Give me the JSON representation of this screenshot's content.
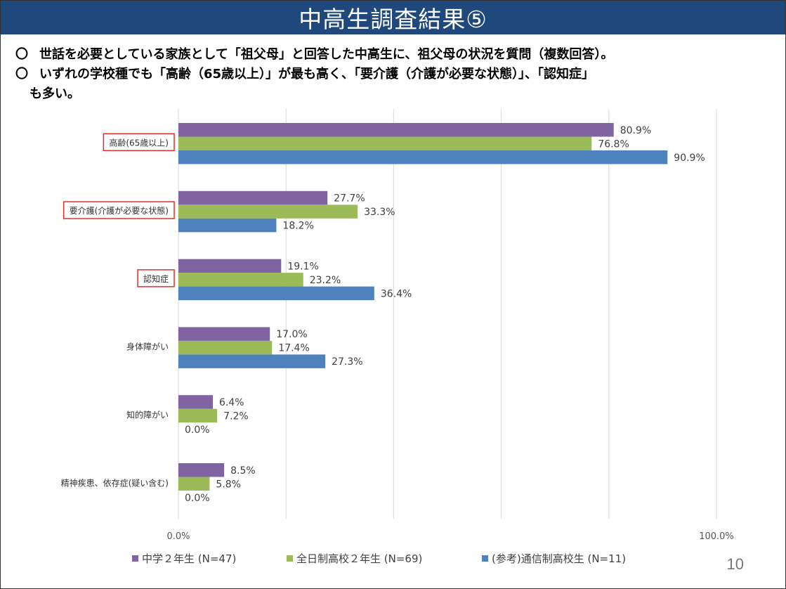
{
  "header": {
    "title": "中高生調査結果⑤"
  },
  "bullets": {
    "mark": "〇",
    "line1": "世話を必要としている家族として「祖父母」と回答した中高生に、祖父母の状況を質問（複数回答）。",
    "line2a": "いずれの学校種でも「高齢（65歳以上）」が最も高く、「要介護（介護が必要な状態）」、「認知症」",
    "line2b": "も多い。"
  },
  "colors": {
    "title_bg": "#1f497d",
    "highlight_box": "#e03030",
    "gridline": "#d9d9d9"
  },
  "chart_data": {
    "type": "bar",
    "orientation": "horizontal",
    "categories": [
      "高齢(65歳以上)",
      "要介護(介護が必要な状態)",
      "認知症",
      "身体障がい",
      "知的障がい",
      "精神疾患、依存症(疑い含む)"
    ],
    "highlighted_categories": [
      0,
      1,
      2
    ],
    "series": [
      {
        "name": "中学２年生 (N=47)",
        "color": "#8064a2",
        "values": [
          80.9,
          27.7,
          19.1,
          17.0,
          6.4,
          8.5
        ]
      },
      {
        "name": "全日制高校２年生 (N=69)",
        "color": "#9bbb59",
        "values": [
          76.8,
          33.3,
          23.2,
          17.4,
          7.2,
          5.8
        ]
      },
      {
        "name": "(参考)通信制高校生 (N=11)",
        "color": "#4f81bd",
        "values": [
          90.9,
          18.2,
          36.4,
          27.3,
          0.0,
          0.0
        ]
      }
    ],
    "xlim": [
      0,
      100
    ],
    "x_tick_labels": [
      "0.0%",
      "100.0%"
    ],
    "grid": true,
    "legend": "bottom",
    "value_suffix": "%"
  },
  "footer": {
    "page_number": "10"
  }
}
